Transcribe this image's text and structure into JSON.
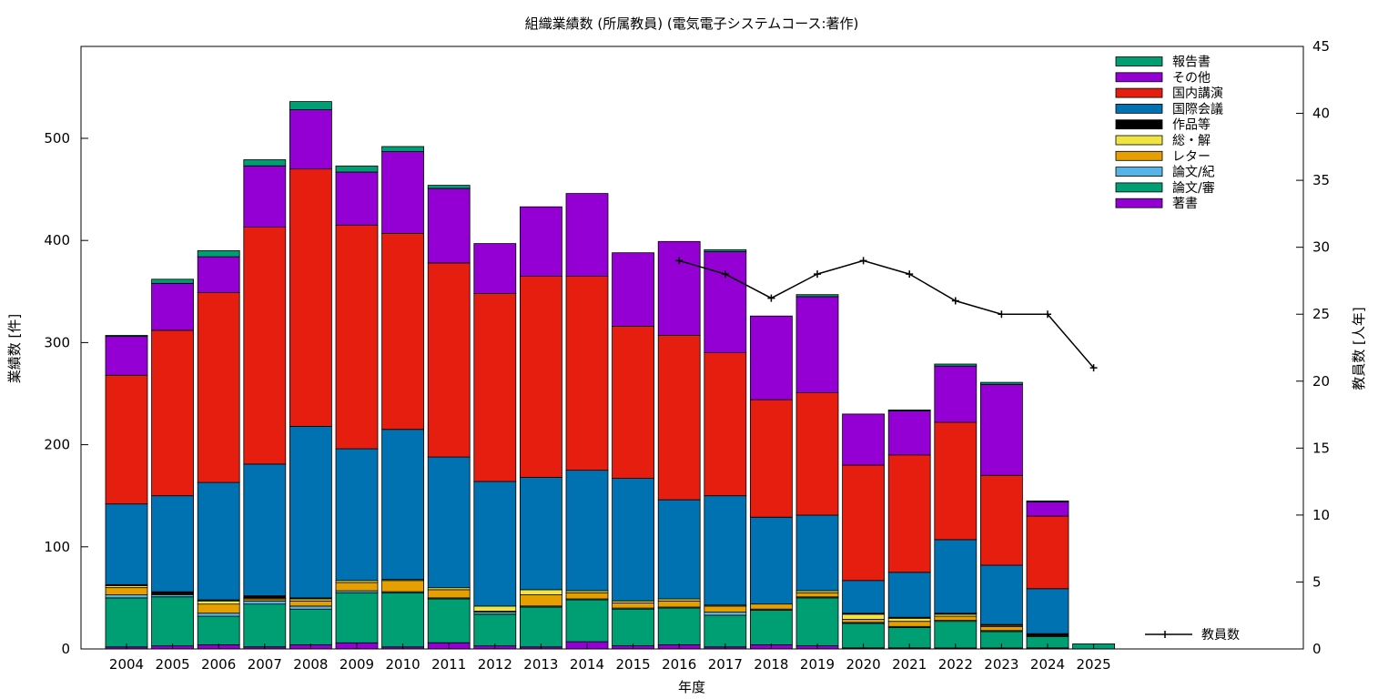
{
  "chart_data": {
    "type": "bar",
    "stacked": true,
    "title": "組織業績数 (所属教員) (電気電子システムコース:著作)",
    "xlabel": "年度",
    "ylabel": "業績数 [件]",
    "y2label": "教員数 [人年]",
    "ylim": [
      0,
      590
    ],
    "y2lim": [
      0,
      45
    ],
    "yticks": [
      0,
      100,
      200,
      300,
      400,
      500
    ],
    "y2ticks": [
      0,
      5,
      10,
      15,
      20,
      25,
      30,
      35,
      40,
      45
    ],
    "legend_position": "top-right",
    "categories": [
      "2004",
      "2005",
      "2006",
      "2007",
      "2008",
      "2009",
      "2010",
      "2011",
      "2012",
      "2013",
      "2014",
      "2015",
      "2016",
      "2017",
      "2018",
      "2019",
      "2020",
      "2021",
      "2022",
      "2023",
      "2024",
      "2025"
    ],
    "series": [
      {
        "name": "著書",
        "color": "#9400d3",
        "values": [
          2,
          3,
          4,
          2,
          4,
          6,
          2,
          6,
          3,
          2,
          7,
          3,
          4,
          2,
          4,
          3,
          1,
          1,
          1,
          1,
          1,
          0
        ]
      },
      {
        "name": "論文/審",
        "color": "#009e73",
        "values": [
          48,
          48,
          28,
          42,
          35,
          49,
          53,
          43,
          31,
          39,
          41,
          36,
          36,
          31,
          34,
          47,
          24,
          20,
          26,
          16,
          11,
          5
        ]
      },
      {
        "name": "論文/紀",
        "color": "#56b4e9",
        "values": [
          3,
          2,
          3,
          3,
          3,
          2,
          1,
          1,
          2,
          1,
          1,
          1,
          1,
          3,
          1,
          1,
          1,
          1,
          1,
          1,
          0,
          0
        ]
      },
      {
        "name": "レター",
        "color": "#e69f00",
        "values": [
          7,
          1,
          9,
          2,
          5,
          8,
          11,
          8,
          1,
          11,
          6,
          5,
          6,
          6,
          5,
          4,
          3,
          5,
          4,
          4,
          1,
          0
        ]
      },
      {
        "name": "総・解",
        "color": "#f0e442",
        "values": [
          2,
          0,
          3,
          1,
          2,
          2,
          1,
          2,
          5,
          5,
          2,
          2,
          2,
          1,
          0,
          2,
          5,
          3,
          2,
          1,
          0,
          0
        ]
      },
      {
        "name": "作品等",
        "color": "#000000",
        "values": [
          1,
          2,
          1,
          2,
          1,
          0,
          0,
          0,
          0,
          0,
          0,
          0,
          0,
          0,
          0,
          0,
          1,
          1,
          1,
          1,
          2,
          0
        ]
      },
      {
        "name": "国際会議",
        "color": "#0072b2",
        "values": [
          79,
          94,
          115,
          129,
          168,
          129,
          147,
          128,
          122,
          110,
          118,
          120,
          97,
          107,
          85,
          74,
          32,
          44,
          72,
          58,
          44,
          0
        ]
      },
      {
        "name": "国内講演",
        "color": "#e51e10",
        "values": [
          126,
          162,
          186,
          232,
          252,
          219,
          192,
          190,
          184,
          197,
          190,
          149,
          161,
          140,
          115,
          120,
          113,
          115,
          115,
          88,
          71,
          0
        ]
      },
      {
        "name": "その他",
        "color": "#9400d3",
        "values": [
          38,
          46,
          35,
          60,
          58,
          52,
          80,
          73,
          49,
          68,
          81,
          72,
          92,
          99,
          82,
          94,
          50,
          43,
          55,
          89,
          14,
          0
        ]
      },
      {
        "name": "報告書",
        "color": "#009e73",
        "values": [
          1,
          4,
          6,
          6,
          8,
          6,
          5,
          3,
          0,
          0,
          0,
          0,
          0,
          2,
          0,
          2,
          0,
          1,
          2,
          2,
          1,
          0
        ]
      }
    ],
    "line_series": {
      "name": "教員数",
      "color": "#000000",
      "axis": "y2",
      "x": [
        "2016",
        "2017",
        "2018",
        "2019",
        "2020",
        "2021",
        "2022",
        "2023",
        "2024",
        "2025"
      ],
      "values": [
        29,
        28,
        26.2,
        28,
        29,
        28,
        26,
        25,
        25,
        21
      ]
    }
  }
}
